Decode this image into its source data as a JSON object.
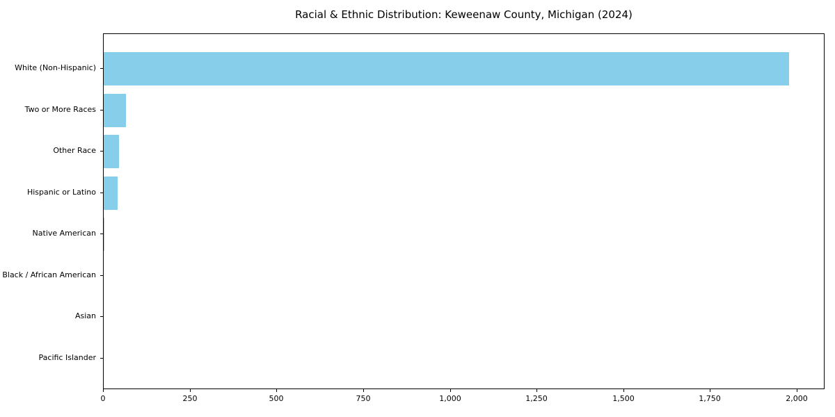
{
  "chart_data": {
    "type": "bar",
    "orientation": "horizontal",
    "title": "Racial & Ethnic Distribution: Keweenaw County, Michigan (2024)",
    "categories": [
      "White (Non-Hispanic)",
      "Two or More Races",
      "Other Race",
      "Hispanic or Latino",
      "Native American",
      "Black / African American",
      "Asian",
      "Pacific Islander"
    ],
    "values": [
      1975,
      65,
      45,
      40,
      2,
      0,
      0,
      0
    ],
    "bar_color": "#87CEEB",
    "xlabel": "",
    "ylabel": "",
    "xlim": [
      0,
      2080
    ],
    "xticks": [
      0,
      250,
      500,
      750,
      1000,
      1250,
      1500,
      1750,
      2000
    ],
    "xtick_labels": [
      "0",
      "250",
      "500",
      "750",
      "1,000",
      "1,250",
      "1,500",
      "1,750",
      "2,000"
    ],
    "grid": false,
    "legend": null,
    "background_color": "#ffffff",
    "text_color": "#000000"
  }
}
